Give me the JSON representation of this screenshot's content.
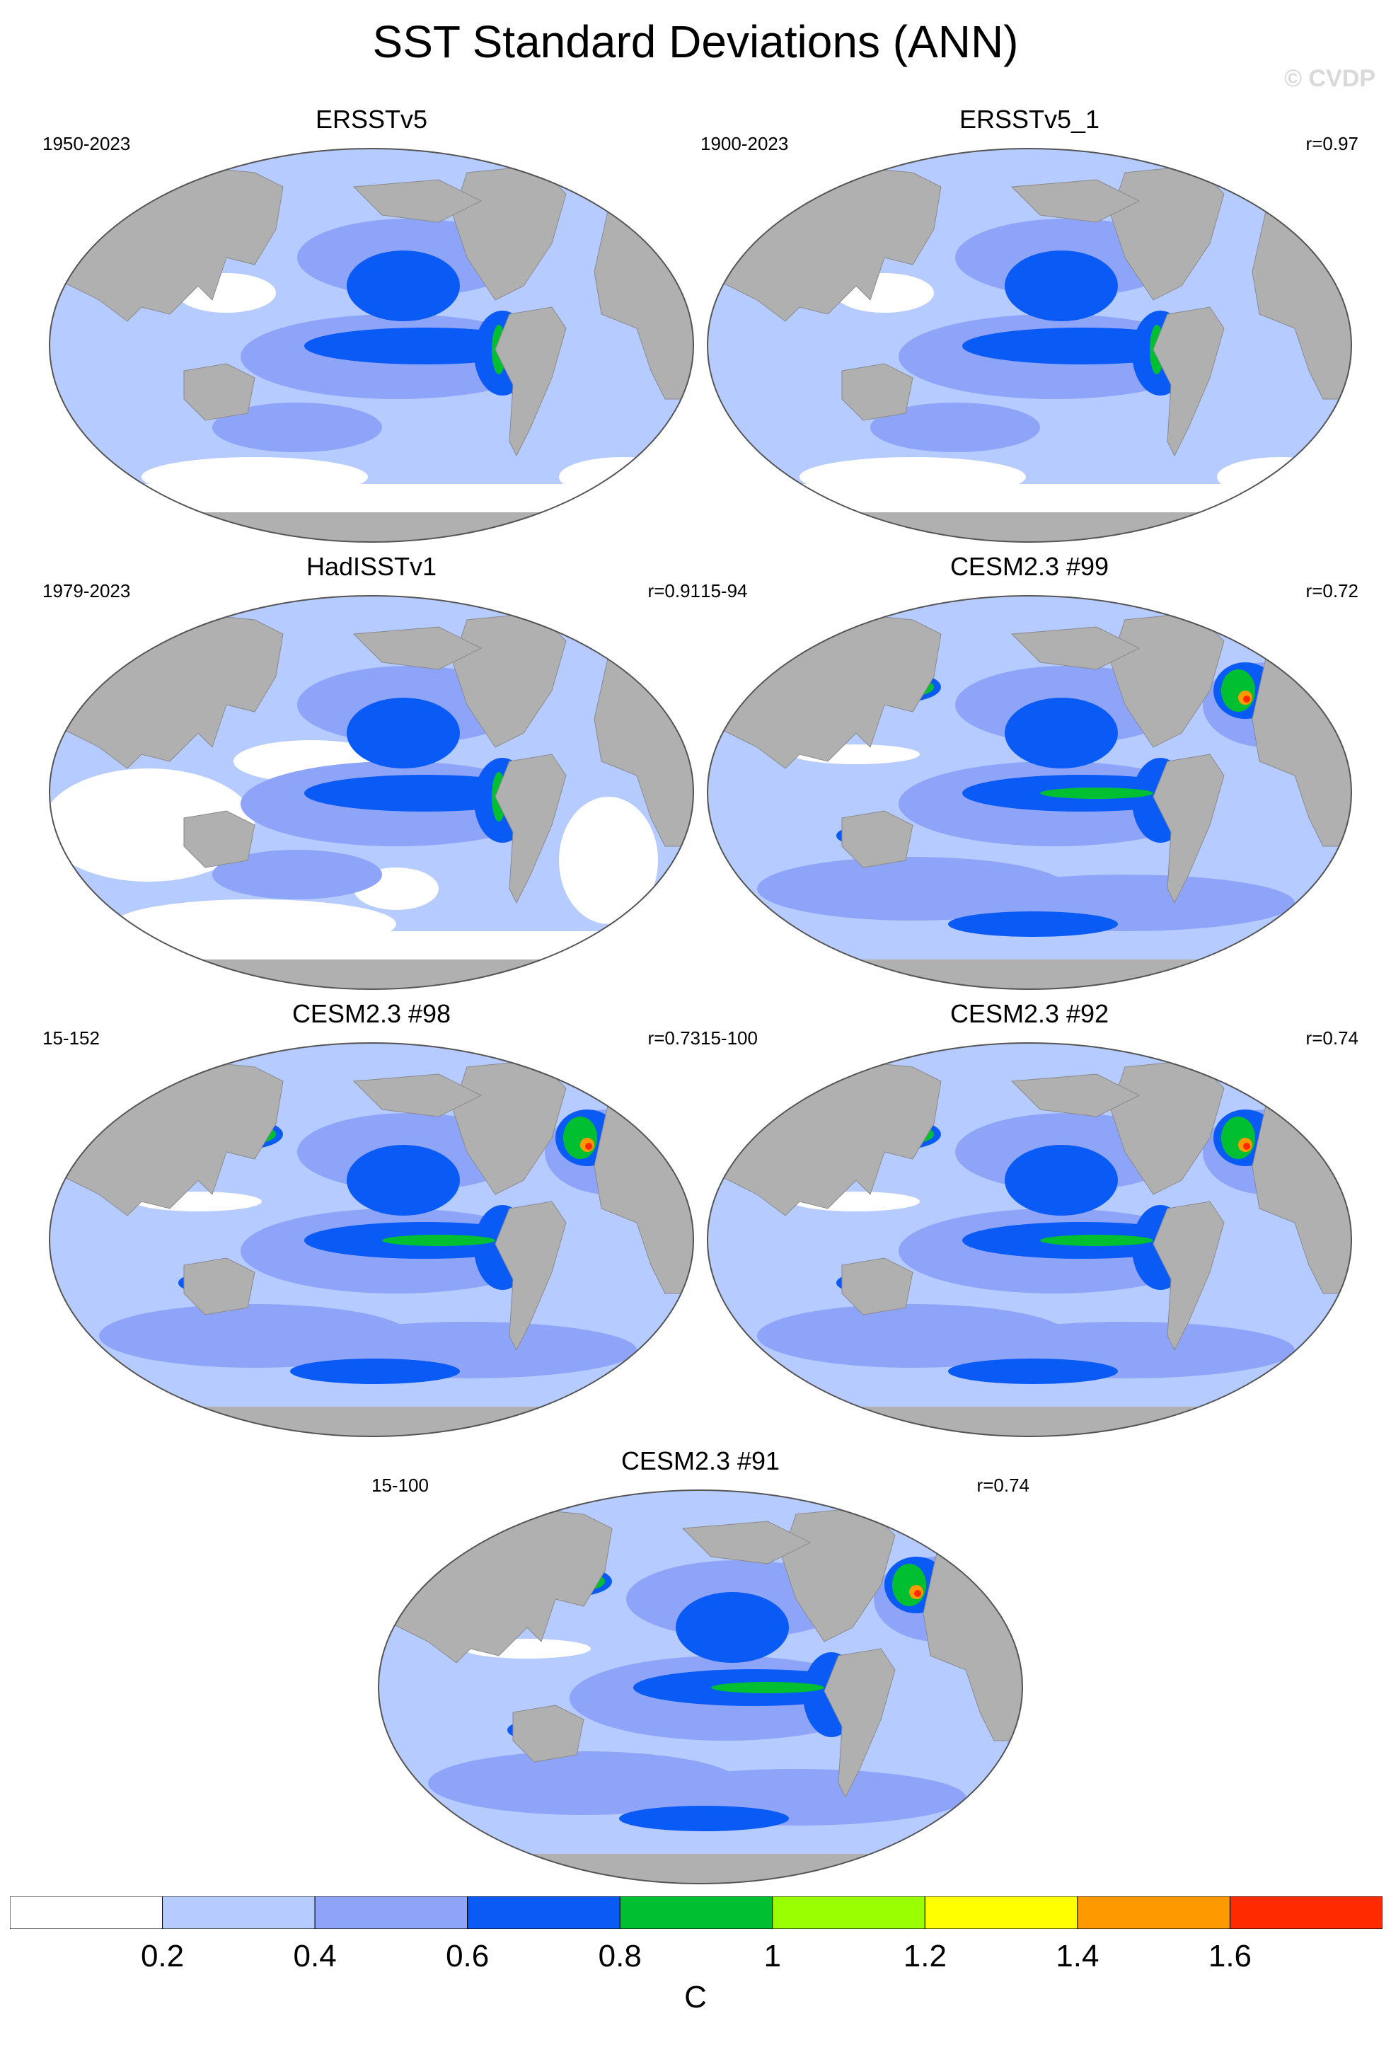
{
  "title": "SST Standard Deviations (ANN)",
  "watermark": "© CVDP",
  "colors": {
    "land": "#b0b0b0",
    "scale": [
      "#ffffff",
      "#b6cbff",
      "#8ea4f8",
      "#0a5af5",
      "#00c032",
      "#99ff00",
      "#ffff00",
      "#ff9900",
      "#ff2a00"
    ]
  },
  "panels": [
    {
      "name": "ERSSTv5",
      "period": "1950-2023",
      "r": ""
    },
    {
      "name": "ERSSTv5_1",
      "period": "1900-2023",
      "r": "r=0.97"
    },
    {
      "name": "HadISSTv1",
      "period": "1979-2023",
      "r": "r=0.91"
    },
    {
      "name": "CESM2.3 #99",
      "period": "15-94",
      "r": "r=0.72"
    },
    {
      "name": "CESM2.3 #98",
      "period": "15-152",
      "r": "r=0.73"
    },
    {
      "name": "CESM2.3 #92",
      "period": "15-100",
      "r": "r=0.74"
    },
    {
      "name": "CESM2.3 #91",
      "period": "15-100",
      "r": "r=0.74"
    }
  ],
  "colorbar": {
    "labels": [
      "0.2",
      "0.4",
      "0.6",
      "0.8",
      "1",
      "1.2",
      "1.4",
      "1.6"
    ],
    "units": "C"
  }
}
